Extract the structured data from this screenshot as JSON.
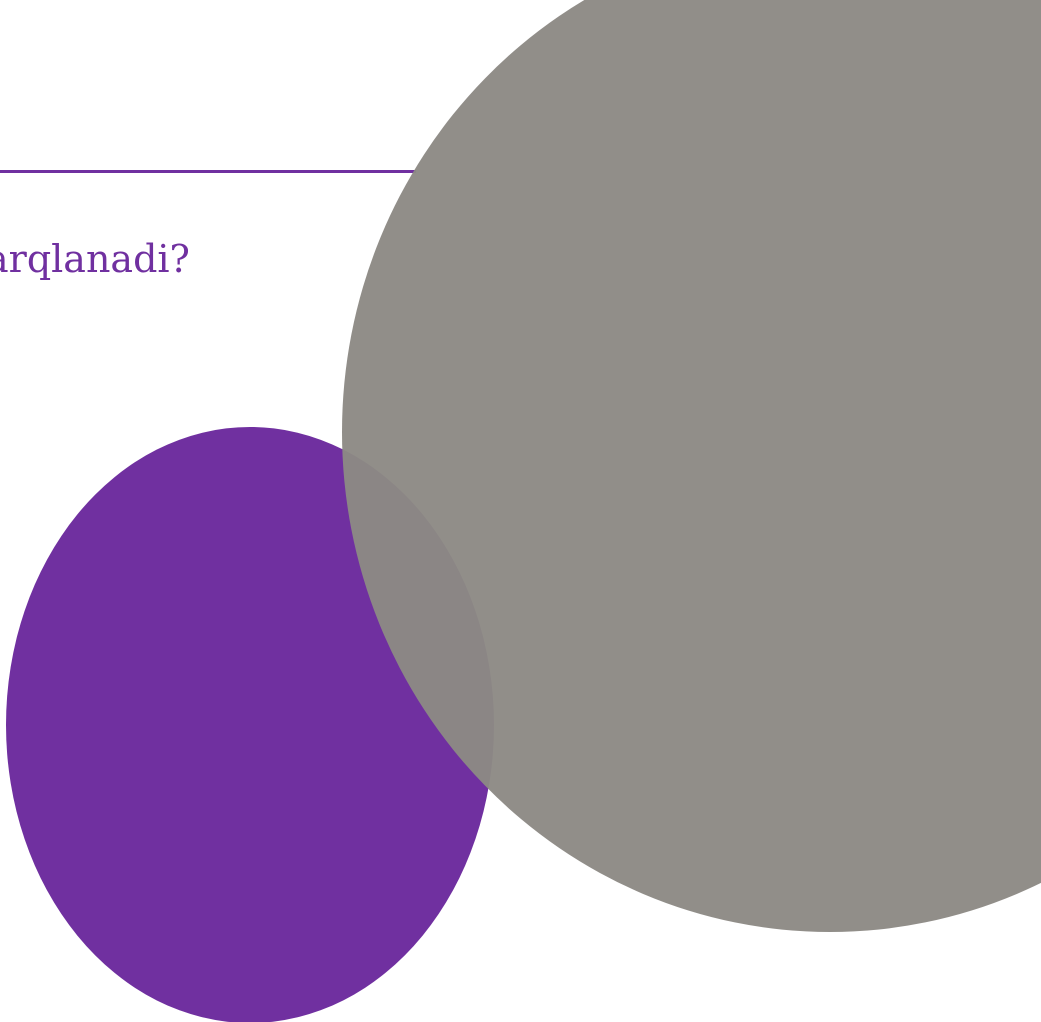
{
  "slide": {
    "heading": "arqlanadi?",
    "colors": {
      "accent": "#7030a0",
      "gray": "#8c8984",
      "background": "#ffffff"
    }
  }
}
